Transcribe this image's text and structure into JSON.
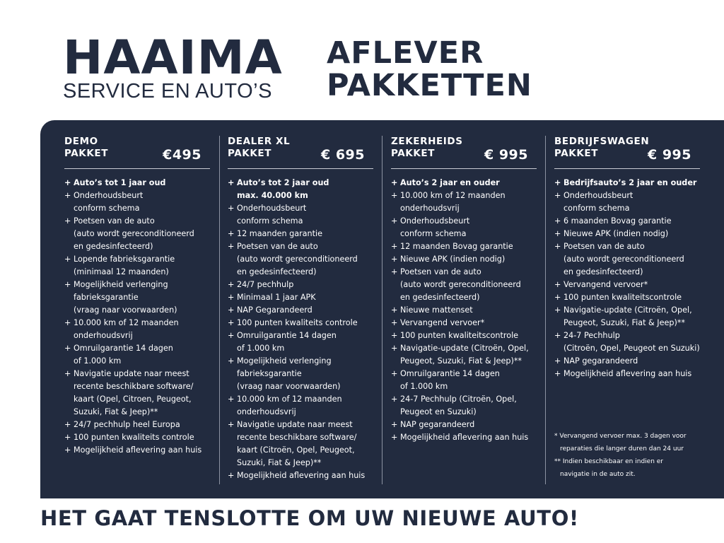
{
  "header": {
    "logo_main": "HAAIMA",
    "logo_sub": "SERVICE EN AUTO’S",
    "title_line1": "AFLEVER",
    "title_line2": "PAKKETTEN"
  },
  "colors": {
    "navy": "#222b3f",
    "text_on_panel": "#ffffff"
  },
  "packages": [
    {
      "name": "DEMO\nPAKKET",
      "price": "€495",
      "items": [
        {
          "text": "Auto’s tot 1 jaar oud",
          "bold": true
        },
        {
          "text": "Onderhoudsbeurt\nconform schema"
        },
        {
          "text": "Poetsen van de auto\n(auto wordt gereconditioneerd\nen gedesinfecteerd)"
        },
        {
          "text": "Lopende fabrieksgarantie\n(minimaal 12 maanden)"
        },
        {
          "text": "Mogelijkheid verlenging\nfabrieksgarantie\n(vraag naar voorwaarden)"
        },
        {
          "text": "10.000 km of 12 maanden\nonderhoudsvrij"
        },
        {
          "text": "Omruilgarantie 14 dagen\nof 1.000 km"
        },
        {
          "text": "Navigatie update naar meest\nrecente beschikbare software/\nkaart (Opel, Citroen,  Peugeot,\nSuzuki, Fiat & Jeep)**"
        },
        {
          "text": "24/7 pechhulp heel Europa"
        },
        {
          "text": "100 punten kwaliteits controle"
        },
        {
          "text": "Mogelijkheid aflevering aan huis"
        }
      ]
    },
    {
      "name": "DEALER XL\nPAKKET",
      "price": "€ 695",
      "items": [
        {
          "text": "Auto’s tot 2 jaar oud\nmax. 40.000 km",
          "bold": true
        },
        {
          "text": "Onderhoudsbeurt\nconform schema"
        },
        {
          "text": "12 maanden garantie"
        },
        {
          "text": "Poetsen van de auto\n(auto wordt gereconditioneerd\nen gedesinfecteerd)"
        },
        {
          "text": "24/7 pechhulp"
        },
        {
          "text": "Minimaal 1 jaar APK"
        },
        {
          "text": "NAP Gegarandeerd"
        },
        {
          "text": "100 punten kwaliteits controle"
        },
        {
          "text": "Omruilgarantie 14 dagen\nof 1.000 km"
        },
        {
          "text": "Mogelijkheid verlenging\nfabrieksgarantie\n(vraag naar voorwaarden)"
        },
        {
          "text": "10.000 km of 12 maanden\nonderhoudsvrij"
        },
        {
          "text": "Navigatie update naar meest\nrecente beschikbare software/\nkaart (Citroën, Opel, Peugeot,\nSuzuki, Fiat & Jeep)**"
        },
        {
          "text": "Mogelijkheid aflevering aan huis"
        }
      ]
    },
    {
      "name": "ZEKERHEIDS\nPAKKET",
      "price": "€ 995",
      "items": [
        {
          "text": "Auto’s 2 jaar en ouder",
          "bold": true
        },
        {
          "text": "10.000 km of 12 maanden\nonderhoudsvrij"
        },
        {
          "text": "Onderhoudsbeurt\nconform schema"
        },
        {
          "text": "12 maanden Bovag garantie"
        },
        {
          "text": "Nieuwe APK (indien nodig)"
        },
        {
          "text": "Poetsen van de auto\n(auto wordt gereconditioneerd\nen gedesinfecteerd)"
        },
        {
          "text": "Nieuwe mattenset"
        },
        {
          "text": "Vervangend vervoer*"
        },
        {
          "text": "100 punten kwaliteitscontrole"
        },
        {
          "text": "Navigatie-update (Citroën, Opel,\nPeugeot, Suzuki, Fiat & Jeep)**"
        },
        {
          "text": "Omruilgarantie 14 dagen\nof 1.000 km"
        },
        {
          "text": "24-7 Pechhulp (Citroën, Opel,\nPeugeot en Suzuki)"
        },
        {
          "text": "NAP gegarandeerd"
        },
        {
          "text": "Mogelijkheid aflevering aan huis"
        }
      ]
    },
    {
      "name": "BEDRIJFSWAGEN\nPAKKET",
      "price": "€ 995",
      "items": [
        {
          "text": "Bedrijfsauto’s 2 jaar en ouder",
          "bold": true
        },
        {
          "text": "Onderhoudsbeurt\nconform schema"
        },
        {
          "text": "6 maanden Bovag garantie"
        },
        {
          "text": "Nieuwe APK (indien nodig)"
        },
        {
          "text": "Poetsen van de auto\n(auto wordt gereconditioneerd\nen gedesinfecteerd)"
        },
        {
          "text": "Vervangend vervoer*"
        },
        {
          "text": "100 punten kwaliteitscontrole"
        },
        {
          "text": "Navigatie-update (Citroën, Opel,\nPeugeot, Suzuki, Fiat & Jeep)**"
        },
        {
          "text": "24-7 Pechhulp\n(Citroën, Opel, Peugeot en Suzuki)"
        },
        {
          "text": "NAP gegarandeerd"
        },
        {
          "text": "Mogelijkheid aflevering aan huis"
        }
      ]
    }
  ],
  "bullet": "+",
  "footnotes": [
    "* Vervangend vervoer max. 3 dagen voor\n  reparaties die langer duren dan 24 uur",
    "** Indien beschikbaar en indien er\n    navigatie in de auto zit."
  ],
  "tagline": "HET GAAT TENSLOTTE OM UW NIEUWE AUTO!"
}
